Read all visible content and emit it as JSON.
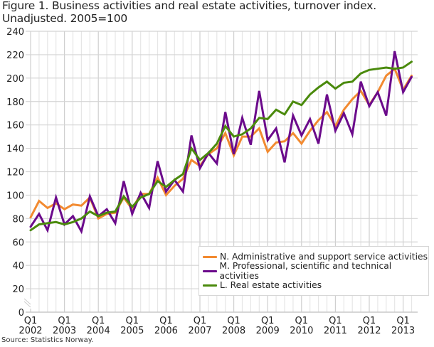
{
  "chart_data": {
    "type": "line",
    "title": "Figure 1. Business activities and real estate activities, turnover index. Unadjusted. 2005=100",
    "source": "Source: Statistics Norway.",
    "xlabel": "",
    "ylabel": "",
    "ylim": [
      0,
      240
    ],
    "y_axis_break": "between 0 and 20",
    "yticks": [
      0,
      20,
      40,
      60,
      80,
      100,
      120,
      140,
      160,
      180,
      200,
      220,
      240
    ],
    "x_tick_labels": [
      {
        "q": "Q1",
        "year": "2002"
      },
      {
        "q": "Q1",
        "year": "2003"
      },
      {
        "q": "Q1",
        "year": "2004"
      },
      {
        "q": "Q1",
        "year": "2005"
      },
      {
        "q": "Q1",
        "year": "2006"
      },
      {
        "q": "Q1",
        "year": "2007"
      },
      {
        "q": "Q1",
        "year": "2008"
      },
      {
        "q": "Q1",
        "year": "2009"
      },
      {
        "q": "Q1",
        "year": "2010"
      },
      {
        "q": "Q1",
        "year": "2011"
      },
      {
        "q": "Q1",
        "year": "2012"
      },
      {
        "q": "Q1",
        "year": "2013"
      }
    ],
    "x_range": [
      "2002 Q1",
      "2013 Q2"
    ],
    "grid": true,
    "legend_position": "bottom-right",
    "series": [
      {
        "name": "N. Administrative and support service activities",
        "color": "#f28a30",
        "values": [
          81,
          95,
          89,
          93,
          88,
          92,
          91,
          98,
          80,
          84,
          85,
          98,
          88,
          101,
          101,
          115,
          100,
          108,
          114,
          130,
          125,
          135,
          140,
          153,
          134,
          150,
          150,
          157,
          137,
          145,
          146,
          153,
          144,
          155,
          164,
          171,
          159,
          173,
          182,
          189,
          177,
          188,
          202,
          208,
          190,
          202
        ]
      },
      {
        "name": "M. Professional, scientific and technical activities",
        "color": "#6b0a8b",
        "values": [
          73,
          84,
          70,
          98,
          75,
          82,
          69,
          99,
          82,
          88,
          76,
          112,
          84,
          102,
          89,
          129,
          103,
          113,
          103,
          151,
          123,
          136,
          127,
          171,
          135,
          166,
          143,
          189,
          147,
          157,
          128,
          168,
          151,
          165,
          144,
          186,
          155,
          170,
          152,
          197,
          176,
          188,
          168,
          223,
          188,
          201
        ]
      },
      {
        "name": "L. Real estate activities",
        "color": "#4a8a0c",
        "values": [
          70,
          75,
          76,
          77,
          75,
          77,
          80,
          86,
          82,
          85,
          86,
          99,
          90,
          98,
          101,
          112,
          107,
          113,
          118,
          140,
          130,
          136,
          144,
          159,
          150,
          152,
          157,
          166,
          165,
          173,
          169,
          180,
          177,
          186,
          192,
          197,
          191,
          196,
          197,
          204,
          207,
          208,
          209,
          208,
          209,
          214
        ]
      }
    ]
  }
}
